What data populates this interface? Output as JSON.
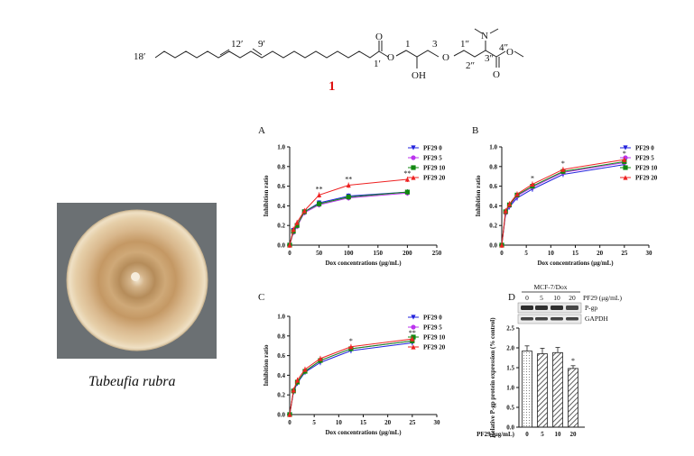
{
  "compound": {
    "number": "1",
    "atom_labels": [
      "18′",
      "12′",
      "9′",
      "1′",
      "1",
      "3",
      "1″",
      "2″",
      "3″",
      "4″"
    ],
    "group_labels": [
      "O",
      "O",
      "O",
      "OH",
      "N",
      "O",
      "O"
    ]
  },
  "photo": {
    "caption": "Tubeufia rubra"
  },
  "colors": {
    "PF29 0": "#2222dd",
    "PF29 5": "#bb33ee",
    "PF29 10": "#118811",
    "PF29 20": "#ee2222",
    "compound_number": "#dd1111"
  },
  "chart_data": [
    {
      "panel": "A",
      "type": "line",
      "xlabel": "Dox concentrations (μg/mL)",
      "ylabel": "Inhibition ratio",
      "xlim": [
        0,
        250
      ],
      "ylim": [
        0,
        1.0
      ],
      "xticks": [
        "0",
        "50",
        "100",
        "150",
        "200",
        "250"
      ],
      "yticks": [
        "0.0",
        "0.2",
        "0.4",
        "0.6",
        "0.8",
        "1.0"
      ],
      "legend": "top-right",
      "x": [
        0,
        6.25,
        12.5,
        25,
        50,
        100,
        200
      ],
      "series": [
        {
          "name": "PF29 0",
          "values": [
            0.0,
            0.15,
            0.2,
            0.34,
            0.43,
            0.5,
            0.54
          ]
        },
        {
          "name": "PF29 5",
          "values": [
            0.0,
            0.13,
            0.19,
            0.33,
            0.41,
            0.48,
            0.53
          ]
        },
        {
          "name": "PF29 10",
          "values": [
            0.0,
            0.14,
            0.2,
            0.34,
            0.42,
            0.49,
            0.54
          ]
        },
        {
          "name": "PF29 20",
          "values": [
            0.0,
            0.16,
            0.23,
            0.35,
            0.51,
            0.61,
            0.67
          ]
        }
      ],
      "annotations": [
        {
          "x": 50,
          "text": "**"
        },
        {
          "x": 100,
          "text": "**"
        },
        {
          "x": 200,
          "text": "**"
        }
      ]
    },
    {
      "panel": "B",
      "type": "line",
      "xlabel": "Dox concentrations (μg/mL)",
      "ylabel": "Inhibition ratio",
      "xlim": [
        0,
        30
      ],
      "ylim": [
        0,
        1.0
      ],
      "xticks": [
        "0",
        "5",
        "10",
        "15",
        "20",
        "25",
        "30"
      ],
      "yticks": [
        "0.0",
        "0.2",
        "0.4",
        "0.6",
        "0.8",
        "1.0"
      ],
      "legend": "top-right",
      "x": [
        0,
        0.78,
        1.56,
        3.125,
        6.25,
        12.5,
        25
      ],
      "series": [
        {
          "name": "PF29 0",
          "values": [
            0.0,
            0.32,
            0.39,
            0.48,
            0.57,
            0.72,
            0.82
          ]
        },
        {
          "name": "PF29 5",
          "values": [
            0.0,
            0.33,
            0.4,
            0.5,
            0.59,
            0.74,
            0.84
          ]
        },
        {
          "name": "PF29 10",
          "values": [
            0.0,
            0.34,
            0.41,
            0.51,
            0.6,
            0.75,
            0.85
          ]
        },
        {
          "name": "PF29 20",
          "values": [
            0.0,
            0.35,
            0.42,
            0.52,
            0.62,
            0.77,
            0.87
          ]
        }
      ],
      "annotations": [
        {
          "x": 6.25,
          "text": "*"
        },
        {
          "x": 12.5,
          "text": "*"
        },
        {
          "x": 25,
          "text": "*"
        }
      ]
    },
    {
      "panel": "C",
      "type": "line",
      "xlabel": "Dox concentrations (μg/mL)",
      "ylabel": "Inhibition ratio",
      "xlim": [
        0,
        30
      ],
      "ylim": [
        0,
        1.0
      ],
      "xticks": [
        "0",
        "5",
        "10",
        "15",
        "20",
        "25",
        "30"
      ],
      "yticks": [
        "0.0",
        "0.2",
        "0.4",
        "0.6",
        "0.8",
        "1.0"
      ],
      "legend": "top-right",
      "x": [
        0,
        0.78,
        1.56,
        3.125,
        6.25,
        12.5,
        25
      ],
      "series": [
        {
          "name": "PF29 0",
          "values": [
            0.0,
            0.23,
            0.32,
            0.43,
            0.53,
            0.65,
            0.73
          ]
        },
        {
          "name": "PF29 5",
          "values": [
            0.0,
            0.24,
            0.33,
            0.44,
            0.55,
            0.67,
            0.75
          ]
        },
        {
          "name": "PF29 10",
          "values": [
            0.0,
            0.24,
            0.33,
            0.44,
            0.55,
            0.67,
            0.75
          ]
        },
        {
          "name": "PF29 20",
          "values": [
            0.0,
            0.25,
            0.35,
            0.46,
            0.57,
            0.69,
            0.77
          ]
        }
      ],
      "annotations": [
        {
          "x": 12.5,
          "text": "*"
        },
        {
          "x": 25,
          "text": "**"
        }
      ]
    },
    {
      "panel": "D",
      "type": "bar",
      "blot_title": "MCF-7/Dox",
      "blot_unit": "PF29 (μg/mL)",
      "blot_rows": [
        "P-gp",
        "GAPDH"
      ],
      "ylabel": "Relative P-gp protein expression (% control)",
      "xlabel": "PF29 (μg/mL)",
      "categories": [
        "0",
        "5",
        "10",
        "20"
      ],
      "values": [
        1.92,
        1.85,
        1.88,
        1.48
      ],
      "errors": [
        0.13,
        0.14,
        0.13,
        0.07
      ],
      "ylim": [
        0,
        2.5
      ],
      "yticks": [
        "0.0",
        "0.5",
        "1.0",
        "1.5",
        "2.0",
        "2.5"
      ],
      "annotations": [
        {
          "category": "20",
          "text": "*"
        }
      ]
    }
  ]
}
